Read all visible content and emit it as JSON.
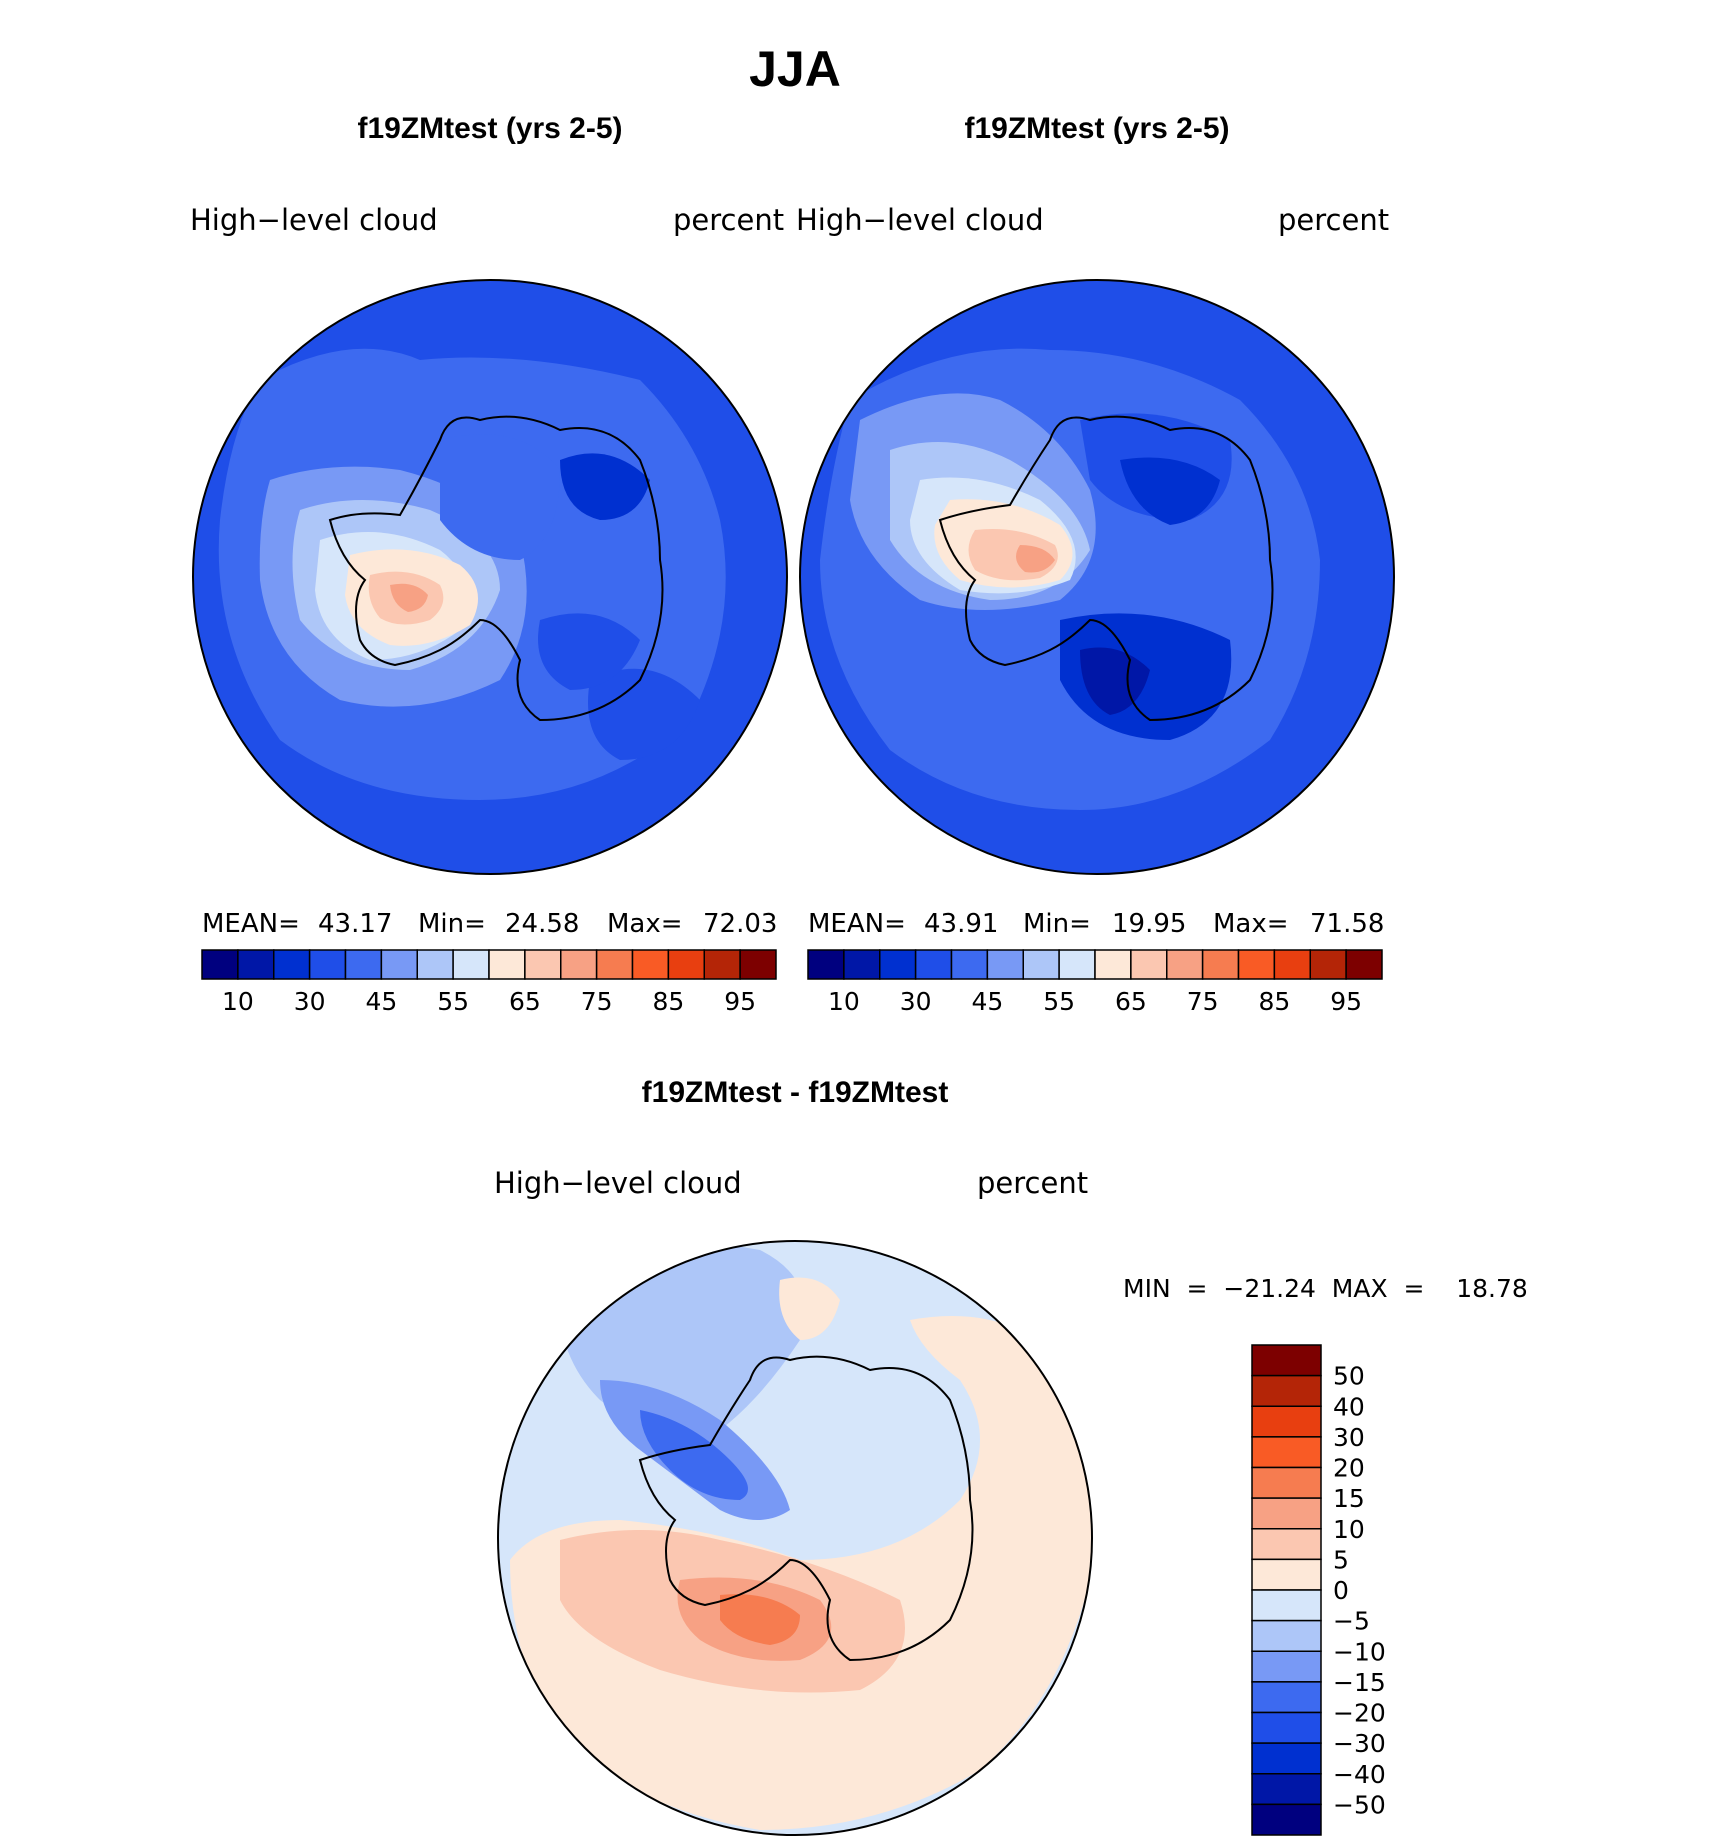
{
  "title": "JJA",
  "panels": [
    {
      "subtitle": "f19ZMtest (yrs 2-5)",
      "variable": "High−level  cloud",
      "units": "percent",
      "stats": {
        "mean_label": "MEAN=",
        "mean": "43.17",
        "min_label": "Min=",
        "min": "24.58",
        "max_label": "Max=",
        "max": "72.03"
      }
    },
    {
      "subtitle": "f19ZMtest (yrs 2-5)",
      "variable": "High−level  cloud",
      "units": "percent",
      "stats": {
        "mean_label": "MEAN=",
        "mean": "43.91",
        "min_label": "Min=",
        "min": "19.95",
        "max_label": "Max=",
        "max": "71.58"
      }
    }
  ],
  "diff_panel": {
    "subtitle": "f19ZMtest - f19ZMtest",
    "variable": "High−level  cloud",
    "units": "percent",
    "stats_text": "MIN  =  −21.24  MAX  =    18.78"
  },
  "colorbar_top": {
    "colors": [
      "#00007f",
      "#0017a7",
      "#0030d0",
      "#1f4ee8",
      "#3d6af0",
      "#7899f5",
      "#adc6f8",
      "#d6e6fa",
      "#fde8d8",
      "#fbc7b1",
      "#f7a184",
      "#f67c50",
      "#f95b25",
      "#e83f10",
      "#b42507",
      "#7d0000"
    ],
    "labels": [
      "10",
      "30",
      "45",
      "55",
      "65",
      "75",
      "85",
      "95"
    ]
  },
  "colorbar_diff": {
    "colors_top_to_bottom": [
      "#7d0000",
      "#b42507",
      "#e83f10",
      "#f95b25",
      "#f67c50",
      "#f7a184",
      "#fbc7b1",
      "#fde8d8",
      "#d6e6fa",
      "#adc6f8",
      "#7899f5",
      "#3d6af0",
      "#1f4ee8",
      "#0030d0",
      "#0017a7",
      "#00007f"
    ],
    "labels": [
      "50",
      "40",
      "30",
      "20",
      "15",
      "10",
      "5",
      "0",
      "−5",
      "−10",
      "−15",
      "−20",
      "−30",
      "−40",
      "−50"
    ]
  }
}
